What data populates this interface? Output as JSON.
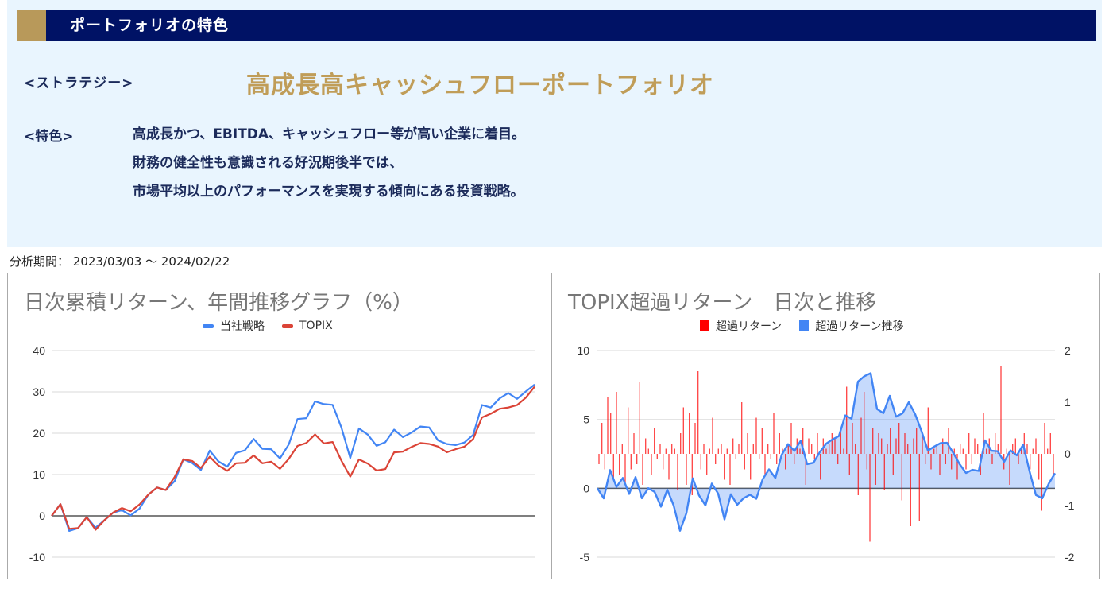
{
  "header": {
    "title": "ポートフォリオの特色",
    "bar_color": "#001265",
    "accent_color": "#b8995a"
  },
  "strategy": {
    "label": "<ストラテジー>",
    "name": "高成長高キャッシュフローポートフォリオ"
  },
  "features": {
    "label": "<特色>",
    "lines": [
      "高成長かつ、EBITDA、キャッシュフロー等が高い企業に着目。",
      "財務の健全性も意識される好況期後半では、",
      "市場平均以上のパフォーマンスを実現する傾向にある投資戦略。"
    ]
  },
  "period": {
    "label": "分析期間：",
    "value": "2023/03/03 ～ 2024/02/22"
  },
  "chart_data": [
    {
      "type": "line",
      "title": "日次累積リターン、年間推移グラフ（%）",
      "xlabel": "",
      "ylabel": "",
      "ylim": [
        -10,
        40
      ],
      "yticks": [
        40,
        30,
        20,
        10,
        0,
        -10
      ],
      "grid": true,
      "legend_position": "top",
      "x_range": [
        "2023/03/03",
        "2024/02/22"
      ],
      "series": [
        {
          "name": "当社戦略",
          "color": "#4285f4",
          "values": [
            0,
            2.5,
            -4,
            -3,
            0,
            -2.5,
            -1,
            0.5,
            1,
            0,
            2,
            5.5,
            7,
            6,
            8,
            13.5,
            13,
            11.5,
            16,
            13,
            11.5,
            15,
            16,
            19,
            16.5,
            16,
            13.5,
            17,
            23.5,
            24,
            28,
            27,
            26.5,
            21,
            14,
            21.5,
            20,
            17,
            17.5,
            20.5,
            19,
            20.5,
            22,
            21.5,
            18,
            17,
            17,
            18,
            20,
            27,
            26,
            28,
            29.5,
            28.5,
            30.5,
            32
          ]
        },
        {
          "name": "TOPIX",
          "color": "#db4437",
          "values": [
            0,
            2.5,
            -3.5,
            -3,
            0,
            -3,
            -1,
            0.5,
            1.5,
            1,
            3,
            5.5,
            7,
            6,
            9,
            13.5,
            13.5,
            12,
            14.5,
            12,
            10.5,
            12.5,
            13,
            15,
            13,
            13,
            11,
            13.5,
            17,
            18,
            20,
            17.5,
            17.5,
            13,
            9.5,
            14,
            13,
            11,
            11,
            15,
            15.5,
            17,
            18,
            17.5,
            16.5,
            15,
            16,
            17,
            19,
            24,
            24.5,
            25.5,
            26,
            27,
            29,
            31.5
          ]
        }
      ]
    },
    {
      "type": "bar+area",
      "title": "TOPIX超過リターン　日次と推移",
      "xlabel": "",
      "ylim_left": [
        -5,
        10
      ],
      "yticks_left": [
        10,
        5,
        0,
        -5
      ],
      "ylim_right": [
        -2,
        2
      ],
      "yticks_right": [
        2,
        1,
        0,
        -1,
        -2
      ],
      "grid": true,
      "legend_position": "top",
      "series": [
        {
          "name": "超過リターン",
          "color": "#ff0000",
          "axis": "right",
          "type": "bar",
          "values": [
            -0.2,
            0.6,
            -0.3,
            1.1,
            0.8,
            -0.5,
            1.2,
            -0.4,
            0.2,
            -0.6,
            0.9,
            -0.3,
            0.4,
            -0.2,
            1.4,
            -0.6,
            0.3,
            0.1,
            -0.4,
            0.5,
            -0.1,
            0.2,
            -0.3,
            0.1,
            -0.5,
            0.2,
            0.1,
            -0.7,
            0.4,
            0.9,
            -0.6,
            0.8,
            -0.8,
            0.6,
            1.6,
            -0.3,
            0.2,
            -0.4,
            0.1,
            0.7,
            -0.2,
            0.1,
            0.2,
            -0.5,
            0.1,
            -0.6,
            0.3,
            -0.1,
            0.2,
            1.0,
            -0.3,
            0.4,
            -0.5,
            0.2,
            0.7,
            -0.1,
            0.5,
            -0.4,
            0.2,
            -0.1,
            0.8,
            -0.2,
            0.4,
            0.1,
            -0.3,
            0.2,
            0.6,
            -0.2,
            0.3,
            0.1,
            0.5,
            -0.6,
            0.3,
            0.2,
            -0.1,
            0.4,
            -0.5,
            0.3,
            0.1,
            0.2,
            0.4,
            0.3,
            -0.2,
            0.5,
            0.1,
            1.3,
            -0.4,
            0.6,
            0.2,
            -0.8,
            0.7,
            1.2,
            -0.3,
            -1.7,
            0.5,
            -0.6,
            0.4,
            0.3,
            -0.7,
            0.2,
            0.5,
            -0.4,
            0.3,
            0.6,
            -0.9,
            0.4,
            0.2,
            -1.4,
            0.3,
            0.5,
            -1.3,
            0.4,
            -0.2,
            0.9,
            -0.3,
            0.1,
            0.2,
            -0.4,
            0.3,
            -0.2,
            0.5,
            -0.3,
            0.1,
            -0.5,
            0.2,
            0.1,
            -0.3,
            0.4,
            -0.2,
            0.3,
            0.2,
            -0.4,
            0.8,
            0.1,
            0.3,
            -0.2,
            0.4,
            0.2,
            1.7,
            -0.3,
            0.1,
            -0.6,
            0.2,
            0.3,
            -0.2,
            0.1,
            0.4,
            0.2,
            -0.3,
            0.1,
            0.3,
            -0.5,
            -1.1,
            0.6,
            0.1,
            0.4,
            -0.4
          ]
        },
        {
          "name": "超過リターン推移",
          "color": "#4285f4",
          "axis": "left",
          "type": "area",
          "values": [
            0,
            -0.5,
            1.5,
            0,
            0.5,
            -0.5,
            1,
            -0.5,
            0,
            -0.5,
            -1.5,
            0,
            -1,
            -3,
            -2,
            0.5,
            -0.5,
            -1,
            0.5,
            -0.5,
            -2.5,
            -0.5,
            -1,
            -0.5,
            -0.5,
            -1,
            0.5,
            1.5,
            1,
            2.5,
            3,
            2.5,
            3.5,
            2,
            2,
            2.5,
            3,
            3.5,
            4,
            5.5,
            5,
            7.5,
            8,
            8.5,
            6,
            5.5,
            6.5,
            5,
            5.5,
            6.5,
            5.5,
            4,
            2.5,
            3,
            3.5,
            3.5,
            2.5,
            1.5,
            1,
            1.5,
            1.5,
            3.5,
            2.5,
            2.5,
            2,
            3,
            2.5,
            3,
            1,
            -0.5,
            -0.5,
            0.5,
            1
          ]
        }
      ]
    }
  ],
  "charts_ui": {
    "left": {
      "title": "日次累積リターン、年間推移グラフ（%）",
      "legend": [
        "当社戦略",
        "TOPIX"
      ],
      "yticks": [
        "40",
        "30",
        "20",
        "10",
        "0",
        "-10"
      ]
    },
    "right": {
      "title": "TOPIX超過リターン　日次と推移",
      "legend": [
        "超過リターン",
        "超過リターン推移"
      ],
      "yticks_left": [
        "10",
        "5",
        "0",
        "-5"
      ],
      "yticks_right": [
        "2",
        "1",
        "0",
        "-1",
        "-2"
      ]
    }
  }
}
